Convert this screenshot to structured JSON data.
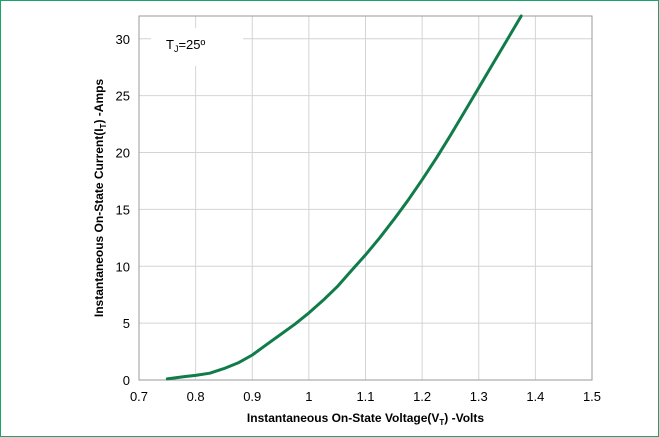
{
  "chart_data": {
    "type": "line",
    "xlabel": {
      "prefix": "Instantaneous On-State Voltage(V",
      "sub": "T",
      "suffix": ") -Volts"
    },
    "ylabel": {
      "prefix": "Instantaneous On-State Current(I",
      "sub": "T",
      "suffix": ") -Amps"
    },
    "annotation": {
      "main": "T",
      "sub": "J",
      "rest": "=25º"
    },
    "xlim": [
      0.7,
      1.5
    ],
    "ylim": [
      0,
      32
    ],
    "x_ticks": [
      0.7,
      0.8,
      0.9,
      1,
      1.1,
      1.2,
      1.3,
      1.4,
      1.5
    ],
    "x_tick_labels": [
      "0.7",
      "0.8",
      "0.9",
      "1",
      "1.1",
      "1.2",
      "1.3",
      "1.4",
      "1.5"
    ],
    "y_ticks": [
      0,
      5,
      10,
      15,
      20,
      25,
      30
    ],
    "y_tick_labels": [
      "0",
      "5",
      "10",
      "15",
      "20",
      "25",
      "30"
    ],
    "grid": "vertical-and-horizontal",
    "series": [
      {
        "color": "#107c4a",
        "x": [
          0.75,
          0.78,
          0.8,
          0.825,
          0.85,
          0.875,
          0.9,
          0.925,
          0.95,
          0.975,
          1.0,
          1.025,
          1.05,
          1.075,
          1.1,
          1.125,
          1.15,
          1.175,
          1.2,
          1.225,
          1.25,
          1.275,
          1.3,
          1.325,
          1.35,
          1.375
        ],
        "y": [
          0.1,
          0.3,
          0.4,
          0.6,
          1.0,
          1.5,
          2.2,
          3.1,
          4.0,
          4.9,
          5.9,
          7.0,
          8.2,
          9.6,
          11.0,
          12.5,
          14.1,
          15.8,
          17.6,
          19.5,
          21.5,
          23.6,
          25.7,
          27.8,
          29.9,
          32.0
        ]
      }
    ]
  }
}
